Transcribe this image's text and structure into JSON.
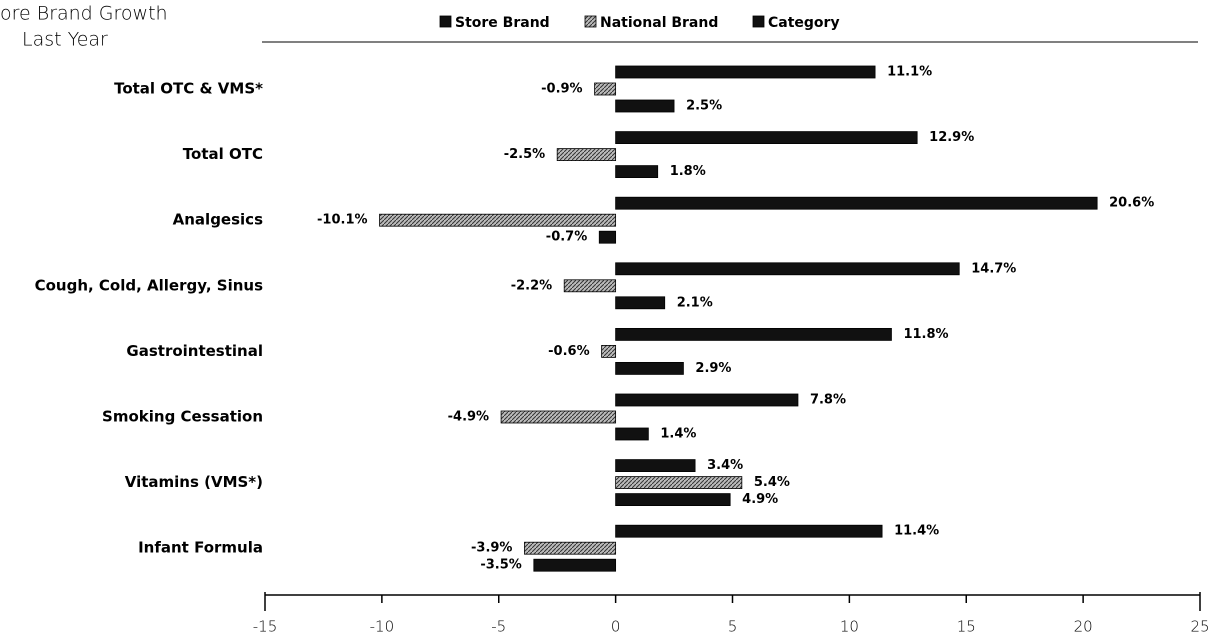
{
  "chart_data": {
    "type": "bar",
    "orientation": "horizontal",
    "title": "ore Brand Growth",
    "subtitle": "Last Year",
    "categories": [
      "Total OTC & VMS*",
      "Total OTC",
      "Analgesics",
      "Cough, Cold, Allergy, Sinus",
      "Gastrointestinal",
      "Smoking Cessation",
      "Vitamins (VMS*)",
      "Infant Formula"
    ],
    "series": [
      {
        "name": "Store Brand",
        "color": "#111111",
        "values": [
          11.1,
          12.9,
          20.6,
          14.7,
          11.8,
          7.8,
          3.4,
          11.4
        ],
        "value_labels": [
          "11.1%",
          "12.9%",
          "20.6%",
          "14.7%",
          "11.8%",
          "7.8%",
          "3.4%",
          "11.4%"
        ]
      },
      {
        "name": "National Brand",
        "color": "#8a8a8a",
        "values": [
          -0.9,
          -2.5,
          -10.1,
          -2.2,
          -0.6,
          -4.9,
          5.4,
          -3.9
        ],
        "value_labels": [
          "-0.9%",
          "-2.5%",
          "-10.1%",
          "-2.2%",
          "-0.6%",
          "-4.9%",
          "5.4%",
          "-3.9%"
        ]
      },
      {
        "name": "Category",
        "color": "#111111",
        "values": [
          2.5,
          1.8,
          -0.7,
          2.1,
          2.9,
          1.4,
          4.9,
          -3.5
        ],
        "value_labels": [
          "2.5%",
          "1.8%",
          "-0.7%",
          "2.1%",
          "2.9%",
          "1.4%",
          "4.9%",
          "-3.5%"
        ]
      }
    ],
    "xlim": [
      -15,
      25
    ],
    "xticks": [
      -15,
      -10,
      -5,
      0,
      5,
      10,
      15,
      20,
      25
    ]
  }
}
